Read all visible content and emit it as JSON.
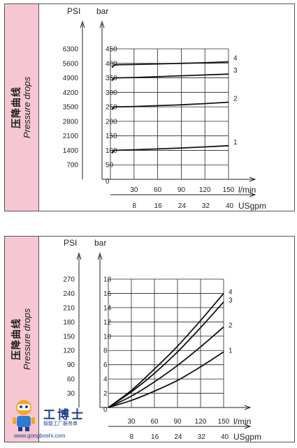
{
  "side_label": {
    "cn": "压降曲线",
    "en": "Pressure drops"
  },
  "watermark": {
    "cn": "工博士",
    "sub": "智能工厂服务商",
    "url": "www.gongboshi.com"
  },
  "chart_data": [
    {
      "type": "line",
      "unit_psi": "PSI",
      "unit_bar": "bar",
      "psi_ticks": [
        "6300",
        "5600",
        "4900",
        "4200",
        "3500",
        "2800",
        "2100",
        "1400",
        "700"
      ],
      "bar_ticks": [
        0,
        50,
        100,
        150,
        200,
        250,
        300,
        350,
        400,
        450
      ],
      "ylim": [
        0,
        450
      ],
      "x_lmin_ticks": [
        30,
        60,
        90,
        120,
        150
      ],
      "x_lmin_label": "l/min",
      "x_usgpm_ticks": [
        8,
        16,
        24,
        32,
        40
      ],
      "x_usgpm_label": "USgpm",
      "xlim": [
        0,
        150
      ],
      "grid": true,
      "series": [
        {
          "name": "1",
          "x": [
            0,
            2,
            5,
            30,
            60,
            90,
            120,
            150
          ],
          "y": [
            0,
            90,
            100,
            102,
            105,
            108,
            112,
            116
          ]
        },
        {
          "name": "2",
          "x": [
            0,
            2,
            5,
            30,
            60,
            90,
            120,
            150
          ],
          "y": [
            0,
            240,
            250,
            251,
            254,
            257,
            261,
            266
          ]
        },
        {
          "name": "3",
          "x": [
            0,
            2,
            5,
            30,
            60,
            90,
            120,
            150
          ],
          "y": [
            0,
            340,
            350,
            351,
            354,
            357,
            360,
            363
          ]
        },
        {
          "name": "4",
          "x": [
            0,
            2,
            5,
            30,
            60,
            90,
            120,
            150
          ],
          "y": [
            0,
            385,
            395,
            396,
            398,
            400,
            402,
            405
          ]
        }
      ]
    },
    {
      "type": "line",
      "unit_psi": "PSI",
      "unit_bar": "bar",
      "psi_ticks": [
        "270",
        "240",
        "210",
        "180",
        "150",
        "120",
        "90",
        "60",
        "30"
      ],
      "bar_ticks": [
        0,
        2,
        4,
        6,
        8,
        10,
        12,
        14,
        16,
        18
      ],
      "ylim": [
        0,
        18
      ],
      "x_lmin_ticks": [
        30,
        60,
        90,
        120,
        150
      ],
      "x_lmin_label": "l/min",
      "x_usgpm_ticks": [
        8,
        16,
        24,
        32,
        40
      ],
      "x_usgpm_label": "USgpm",
      "xlim": [
        0,
        150
      ],
      "grid": true,
      "series": [
        {
          "name": "1",
          "x": [
            0,
            30,
            60,
            90,
            120,
            150
          ],
          "y": [
            0,
            1.0,
            2.3,
            3.8,
            5.7,
            7.8
          ]
        },
        {
          "name": "2",
          "x": [
            0,
            30,
            60,
            90,
            120,
            150
          ],
          "y": [
            0,
            1.6,
            3.6,
            5.9,
            8.5,
            11.3
          ]
        },
        {
          "name": "3",
          "x": [
            0,
            30,
            60,
            90,
            120,
            150
          ],
          "y": [
            0,
            2.2,
            4.8,
            7.8,
            11.2,
            14.8
          ]
        },
        {
          "name": "4",
          "x": [
            0,
            30,
            60,
            90,
            120,
            150
          ],
          "y": [
            0,
            2.4,
            5.4,
            8.6,
            12.2,
            16.0
          ]
        }
      ]
    }
  ]
}
